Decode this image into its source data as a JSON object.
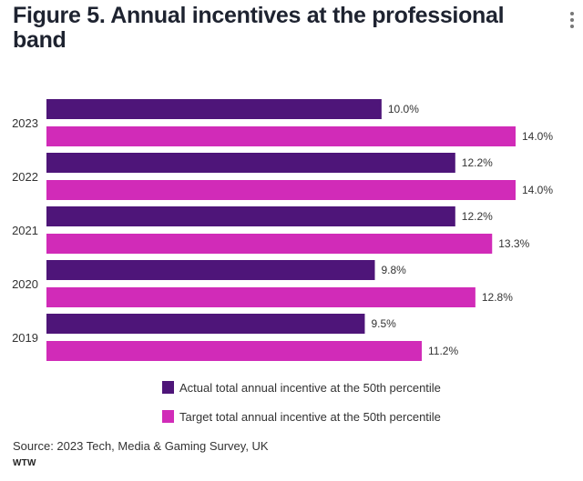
{
  "header": {
    "title": "Figure 5. Annual incentives at the professional band",
    "menu_icon": "kebab-menu-icon"
  },
  "chart_data": {
    "type": "bar",
    "orientation": "horizontal",
    "title": "Figure 5. Annual incentives at the professional band",
    "categories": [
      "2023",
      "2022",
      "2021",
      "2020",
      "2019"
    ],
    "series": [
      {
        "name": "Actual total annual incentive at the 50th percentile",
        "color": "#4e1579",
        "values": [
          10.0,
          12.2,
          12.2,
          9.8,
          9.5
        ],
        "labels": [
          "10.0%",
          "12.2%",
          "12.2%",
          "9.8%",
          "9.5%"
        ]
      },
      {
        "name": "Target total annual incentive at the 50th percentile",
        "color": "#d12bb8",
        "values": [
          14.0,
          14.0,
          13.3,
          12.8,
          11.2
        ],
        "labels": [
          "14.0%",
          "14.0%",
          "13.3%",
          "12.8%",
          "11.2%"
        ]
      }
    ],
    "xlabel": "",
    "ylabel": "",
    "xlim": [
      0,
      14.0
    ],
    "grid": false,
    "legend_position": "bottom"
  },
  "footer": {
    "source": "Source: 2023 Tech, Media & Gaming Survey, UK",
    "brand": "WTW"
  }
}
